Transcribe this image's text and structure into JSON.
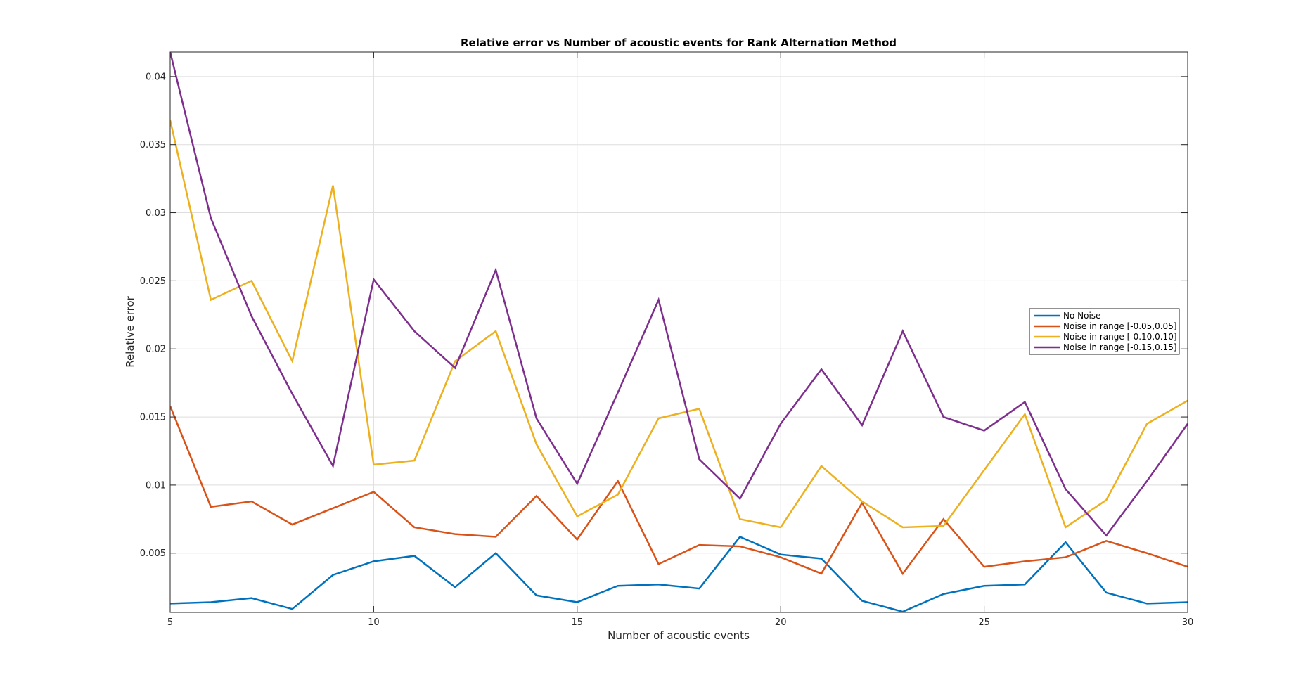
{
  "chart_data": {
    "type": "line",
    "title": "Relative error vs Number of acoustic events for Rank Alternation Method",
    "xlabel": "Number of acoustic events",
    "ylabel": "Relative error",
    "xlim": [
      5,
      30
    ],
    "ylim": [
      0.00065,
      0.0418
    ],
    "xticks": [
      5,
      10,
      15,
      20,
      25,
      30
    ],
    "xtick_labels": [
      "5",
      "10",
      "15",
      "20",
      "25",
      "30"
    ],
    "yticks": [
      0.005,
      0.01,
      0.015,
      0.02,
      0.025,
      0.03,
      0.035,
      0.04
    ],
    "ytick_labels": [
      "0.005",
      "0.01",
      "0.015",
      "0.02",
      "0.025",
      "0.03",
      "0.035",
      "0.04"
    ],
    "grid": true,
    "legend_position": "right",
    "x": [
      5,
      6,
      7,
      8,
      9,
      10,
      11,
      12,
      13,
      14,
      15,
      16,
      17,
      18,
      19,
      20,
      21,
      22,
      23,
      24,
      25,
      26,
      27,
      28,
      29,
      30
    ],
    "series": [
      {
        "name": "No Noise",
        "color": "#0072BD",
        "values": [
          0.0013,
          0.0014,
          0.0017,
          0.0009,
          0.0034,
          0.0044,
          0.0048,
          0.0025,
          0.005,
          0.0019,
          0.0014,
          0.0026,
          0.0027,
          0.0024,
          0.0062,
          0.0049,
          0.0046,
          0.0015,
          0.0007,
          0.002,
          0.0026,
          0.0027,
          0.0058,
          0.0021,
          0.0013,
          0.0014
        ]
      },
      {
        "name": "Noise in range [-0.05,0.05]",
        "color": "#D95319",
        "values": [
          0.0158,
          0.0084,
          0.0088,
          0.0071,
          0.0083,
          0.0095,
          0.0069,
          0.0064,
          0.0062,
          0.0092,
          0.006,
          0.0103,
          0.0042,
          0.0056,
          0.0055,
          0.0047,
          0.0035,
          0.0087,
          0.0035,
          0.0075,
          0.004,
          0.0044,
          0.0047,
          0.0059,
          0.005,
          0.004
        ]
      },
      {
        "name": "Noise in range [-0.10,0.10]",
        "color": "#EDB120",
        "values": [
          0.0368,
          0.0236,
          0.025,
          0.0191,
          0.032,
          0.0115,
          0.0118,
          0.0191,
          0.0213,
          0.013,
          0.0077,
          0.0093,
          0.0149,
          0.0156,
          0.0075,
          0.0069,
          0.0114,
          0.0088,
          0.0069,
          0.007,
          0.0111,
          0.0152,
          0.0069,
          0.0089,
          0.0145,
          0.0162
        ]
      },
      {
        "name": "Noise in range [-0.15,0.15]",
        "color": "#7E2F8E",
        "values": [
          0.0418,
          0.0296,
          0.0224,
          0.0167,
          0.0114,
          0.0251,
          0.0213,
          0.0186,
          0.0258,
          0.0149,
          0.0101,
          0.0168,
          0.0236,
          0.0119,
          0.009,
          0.0145,
          0.0185,
          0.0144,
          0.0213,
          0.015,
          0.014,
          0.0161,
          0.0097,
          0.0063,
          0.0103,
          0.0145
        ]
      }
    ]
  }
}
